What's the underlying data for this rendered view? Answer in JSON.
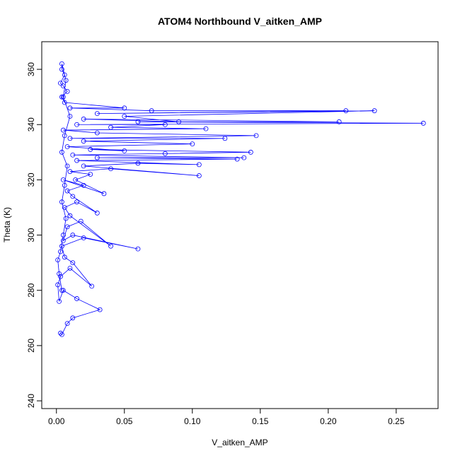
{
  "chart_data": {
    "type": "line",
    "marker": "circle",
    "title": "ATOM4 Northbound V_aitken_AMP",
    "x_label": "V_aitken_AMP",
    "y_label": "Theta (K)",
    "color": "#0000ff",
    "x": [
      0.003,
      0.004,
      0.008,
      0.012,
      0.032,
      0.015,
      0.005,
      0.002,
      0.001,
      0.003,
      0.01,
      0.026,
      0.012,
      0.006,
      0.004,
      0.02,
      0.06,
      0.012,
      0.005,
      0.008,
      0.018,
      0.04,
      0.01,
      0.006,
      0.015,
      0.03,
      0.012,
      0.008,
      0.02,
      0.005,
      0.035,
      0.014,
      0.025,
      0.01,
      0.04,
      0.105,
      0.02,
      0.06,
      0.105,
      0.015,
      0.133,
      0.03,
      0.138,
      0.012,
      0.08,
      0.143,
      0.025,
      0.05,
      0.008,
      0.1,
      0.02,
      0.124,
      0.01,
      0.147,
      0.03,
      0.005,
      0.11,
      0.04,
      0.08,
      0.015,
      0.27,
      0.06,
      0.208,
      0.02,
      0.09,
      0.05,
      0.234,
      0.03,
      0.213,
      0.07,
      0.01,
      0.05,
      0.006,
      0.004,
      0.008,
      0.005,
      0.003,
      0.006,
      0.004,
      0.004,
      0.007,
      0.005,
      0.01,
      0.006,
      0.004,
      0.008,
      0.006,
      0.004,
      0.007,
      0.005,
      0.003,
      0.001,
      0.002,
      0.004
    ],
    "values": [
      264.5,
      264,
      268,
      270,
      273,
      277,
      280,
      276,
      282,
      285,
      288,
      281.5,
      290,
      292,
      296,
      299,
      295,
      300,
      298,
      303,
      305,
      296,
      307,
      310,
      312,
      308,
      314,
      316,
      318,
      320,
      315,
      320,
      322,
      323,
      324,
      321.5,
      325,
      326,
      325.5,
      327,
      327.5,
      328,
      328,
      329,
      329.5,
      330,
      331,
      330.5,
      332,
      333,
      334,
      335,
      335,
      336,
      337,
      338,
      338.5,
      339,
      340,
      340,
      340.5,
      341,
      341,
      342,
      341,
      343,
      345,
      344,
      345,
      345,
      346,
      346,
      348,
      350,
      352,
      354,
      355,
      358,
      360,
      362,
      356,
      350,
      343,
      336,
      330,
      325,
      318,
      312,
      306,
      300,
      294,
      291,
      286,
      280
    ],
    "xlim": [
      -0.0108,
      0.2808
    ],
    "ylim": [
      237.2,
      370
    ],
    "xticks": [
      {
        "value": 0,
        "label": "0.00"
      },
      {
        "value": 0.05,
        "label": "0.05"
      },
      {
        "value": 0.1,
        "label": "0.10"
      },
      {
        "value": 0.15,
        "label": "0.15"
      },
      {
        "value": 0.2,
        "label": "0.20"
      },
      {
        "value": 0.25,
        "label": "0.25"
      }
    ],
    "yticks": [
      240,
      260,
      280,
      300,
      320,
      340,
      360
    ]
  }
}
